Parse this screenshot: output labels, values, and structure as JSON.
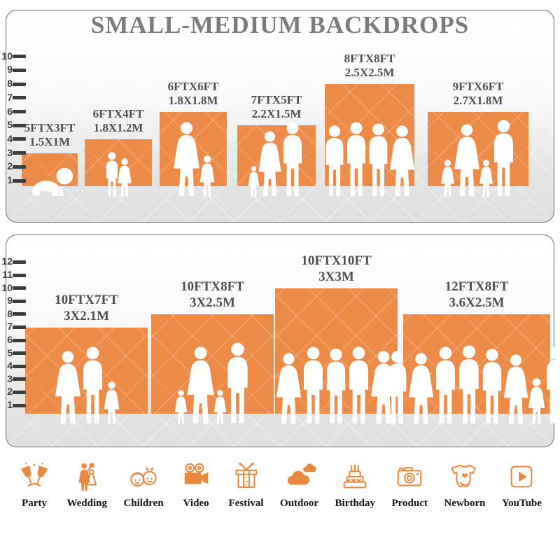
{
  "title": "SMALL-MEDIUM BACKDROPS",
  "colors": {
    "accent": "#EC8A47",
    "title_gray": "#7B7B7B",
    "label_gray": "#4F4F4F"
  },
  "panels": [
    {
      "name": "small-medium-backdrops",
      "ruler": {
        "min": 1,
        "max": 10
      },
      "backdrops": [
        {
          "size_ft": "5FTX3FT",
          "size_m": "1.5X1M",
          "width_ft": 5,
          "height_ft": 3,
          "figures": [
            [
              "baby",
              0.42
            ]
          ]
        },
        {
          "size_ft": "6FTX4FT",
          "size_m": "1.8X1.2M",
          "width_ft": 6,
          "height_ft": 4,
          "figures": [
            [
              "boy",
              0.6
            ],
            [
              "girl",
              0.52
            ]
          ]
        },
        {
          "size_ft": "6FTX6FT",
          "size_m": "1.8X1.8M",
          "width_ft": 6,
          "height_ft": 6,
          "figures": [
            [
              "woman",
              1.0
            ],
            [
              "girl",
              0.56
            ]
          ]
        },
        {
          "size_ft": "7FTX5FT",
          "size_m": "2.2X1.5M",
          "width_ft": 7,
          "height_ft": 5,
          "figures": [
            [
              "girl",
              0.42
            ],
            [
              "woman",
              0.88
            ],
            [
              "man",
              1.0
            ]
          ]
        },
        {
          "size_ft": "8FTX8FT",
          "size_m": "2.5X2.5M",
          "width_ft": 8,
          "height_ft": 8,
          "figures": [
            [
              "man",
              0.95
            ],
            [
              "man",
              1.0
            ],
            [
              "man",
              0.98
            ],
            [
              "woman",
              0.95
            ]
          ]
        },
        {
          "size_ft": "9FTX6FT",
          "size_m": "2.7X1.8M",
          "width_ft": 9,
          "height_ft": 6,
          "figures": [
            [
              "girl",
              0.5
            ],
            [
              "woman",
              0.97
            ],
            [
              "girl",
              0.5
            ],
            [
              "man",
              1.03
            ]
          ]
        }
      ]
    },
    {
      "name": "large-backdrops",
      "ruler": {
        "min": 1,
        "max": 12
      },
      "backdrops": [
        {
          "size_ft": "10FTX7FT",
          "size_m": "3X2.1M",
          "width_ft": 10,
          "height_ft": 7,
          "figures": [
            [
              "woman",
              0.95
            ],
            [
              "man",
              1.0
            ],
            [
              "girl",
              0.55
            ]
          ]
        },
        {
          "size_ft": "10FTX8FT",
          "size_m": "3X2.5M",
          "width_ft": 10,
          "height_ft": 8,
          "figures": [
            [
              "girl",
              0.45
            ],
            [
              "woman",
              1.0
            ],
            [
              "girl",
              0.45
            ],
            [
              "man",
              1.05
            ]
          ]
        },
        {
          "size_ft": "10FTX10FT",
          "size_m": "3X3M",
          "width_ft": 10,
          "height_ft": 10,
          "figures": [
            [
              "woman",
              0.92
            ],
            [
              "man",
              1.0
            ],
            [
              "man",
              0.98
            ],
            [
              "man",
              1.0
            ],
            [
              "woman",
              0.95
            ]
          ]
        },
        {
          "size_ft": "12FTX8FT",
          "size_m": "3.6X2.5M",
          "width_ft": 12,
          "height_ft": 8,
          "figures": [
            [
              "man",
              0.95
            ],
            [
              "woman",
              0.92
            ],
            [
              "man",
              1.0
            ],
            [
              "man",
              1.02
            ],
            [
              "man",
              0.97
            ],
            [
              "woman",
              0.9
            ],
            [
              "girl",
              0.6
            ],
            [
              "man",
              1.0
            ]
          ]
        }
      ]
    }
  ],
  "categories": [
    {
      "label": "Party",
      "icon": "party-icon"
    },
    {
      "label": "Wedding",
      "icon": "wedding-icon"
    },
    {
      "label": "Children",
      "icon": "children-icon"
    },
    {
      "label": "Video",
      "icon": "video-icon"
    },
    {
      "label": "Festival",
      "icon": "festival-icon"
    },
    {
      "label": "Outdoor",
      "icon": "outdoor-icon"
    },
    {
      "label": "Birthday",
      "icon": "birthday-icon"
    },
    {
      "label": "Product",
      "icon": "product-icon"
    },
    {
      "label": "Newborn",
      "icon": "newborn-icon"
    },
    {
      "label": "YouTube",
      "icon": "youtube-icon"
    }
  ]
}
